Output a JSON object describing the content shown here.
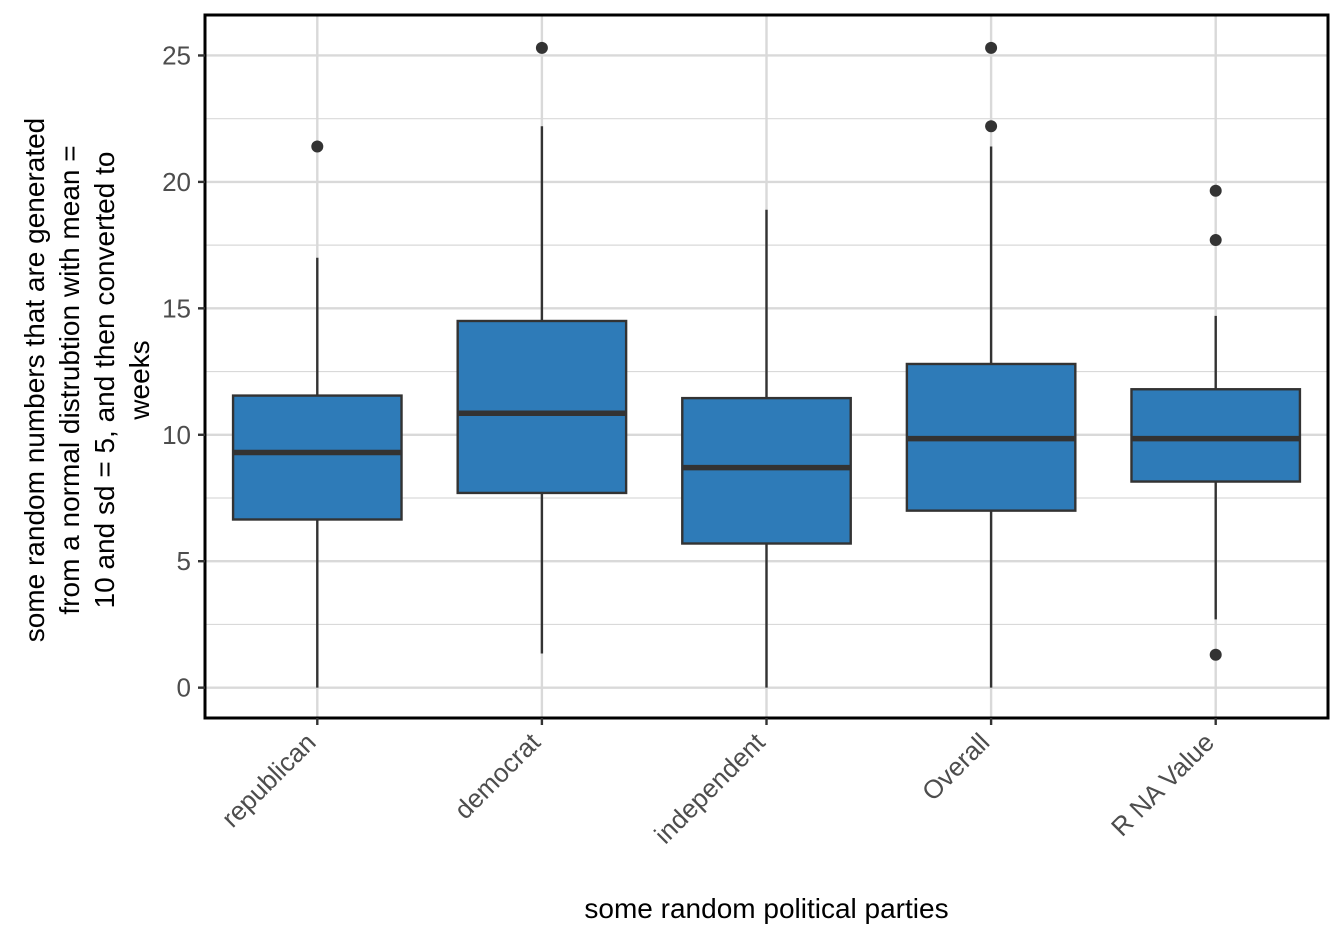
{
  "chart_data": {
    "type": "boxplot",
    "title": "",
    "xlabel": "some random political parties",
    "ylabel_lines": [
      "some random numbers that are generated",
      "from a normal distrubtion with mean =",
      "10 and sd = 5, and then converted to",
      "weeks"
    ],
    "ylim": [
      -1.2,
      26.6
    ],
    "y_ticks": [
      0,
      5,
      10,
      15,
      20,
      25
    ],
    "grid": true,
    "legend": "none",
    "categories": [
      "republican",
      "democrat",
      "independent",
      "Overall",
      "R NA Value"
    ],
    "boxes": [
      {
        "category": "republican",
        "whisker_low": 0.0,
        "q1": 6.65,
        "median": 9.3,
        "q3": 11.55,
        "whisker_high": 17.0,
        "outliers": [
          21.4
        ]
      },
      {
        "category": "democrat",
        "whisker_low": 1.35,
        "q1": 7.7,
        "median": 10.85,
        "q3": 14.5,
        "whisker_high": 22.2,
        "outliers": [
          25.3
        ]
      },
      {
        "category": "independent",
        "whisker_low": 0.0,
        "q1": 5.7,
        "median": 8.7,
        "q3": 11.45,
        "whisker_high": 18.9,
        "outliers": []
      },
      {
        "category": "Overall",
        "whisker_low": 0.0,
        "q1": 7.0,
        "median": 9.85,
        "q3": 12.8,
        "whisker_high": 21.4,
        "outliers": [
          22.2,
          25.3
        ]
      },
      {
        "category": "R NA Value",
        "whisker_low": 2.7,
        "q1": 8.15,
        "median": 9.85,
        "q3": 11.8,
        "whisker_high": 14.7,
        "outliers": [
          1.3,
          17.7,
          19.65
        ]
      }
    ],
    "colors": {
      "box_fill": "#2e7bb8",
      "box_line": "#333333",
      "grid": "#d9d9d9",
      "panel_border": "#000000",
      "outlier": "#333333"
    }
  }
}
